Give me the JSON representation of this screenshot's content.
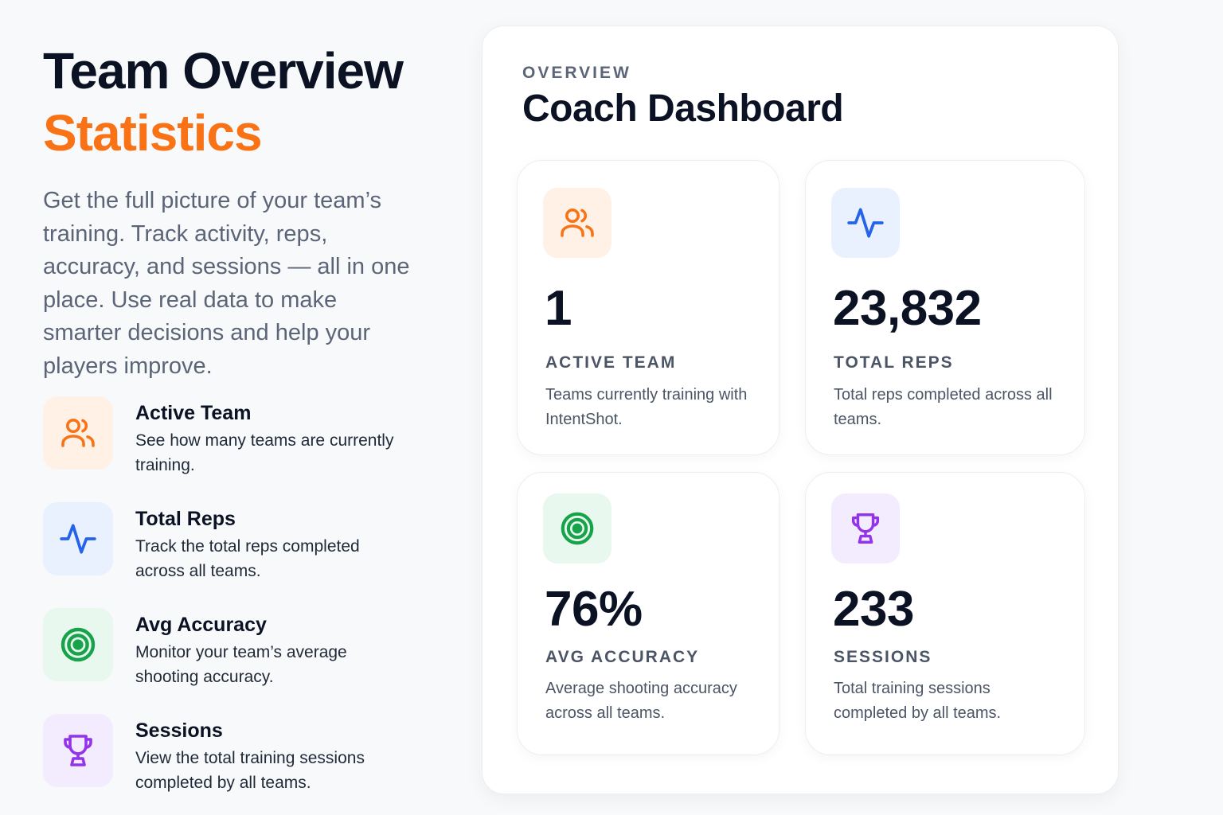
{
  "hero": {
    "title_line1": "Team Overview",
    "title_line2": "Statistics",
    "intro": "Get the full picture of your team’s training. Track activity, reps, accuracy, and sessions — all in one place. Use real data to make smarter decisions and help your players improve."
  },
  "features": [
    {
      "icon": "users-icon",
      "title": "Active Team",
      "desc": "See how many teams are currently training."
    },
    {
      "icon": "activity-icon",
      "title": "Total Reps",
      "desc": "Track the total reps completed across all teams."
    },
    {
      "icon": "target-icon",
      "title": "Avg Accuracy",
      "desc": "Monitor your team’s average shooting accuracy."
    },
    {
      "icon": "trophy-icon",
      "title": "Sessions",
      "desc": "View the total training sessions completed by all teams."
    }
  ],
  "dashboard": {
    "eyebrow": "OVERVIEW",
    "title": "Coach Dashboard",
    "cards": [
      {
        "icon": "users-icon",
        "value": "1",
        "label": "ACTIVE TEAM",
        "desc": "Teams currently training with IntentShot."
      },
      {
        "icon": "activity-icon",
        "value": "23,832",
        "label": "TOTAL REPS",
        "desc": "Total reps completed across all teams."
      },
      {
        "icon": "target-icon",
        "value": "76%",
        "label": "AVG ACCURACY",
        "desc": "Average shooting accuracy across all teams."
      },
      {
        "icon": "trophy-icon",
        "value": "233",
        "label": "SESSIONS",
        "desc": "Total training sessions completed by all teams."
      }
    ]
  },
  "colors": {
    "accent": "#f97316",
    "blue": "#2563eb",
    "green": "#16a34a",
    "purple": "#9333ea",
    "text_dark": "#0b1224",
    "text_muted": "#5b6577"
  }
}
